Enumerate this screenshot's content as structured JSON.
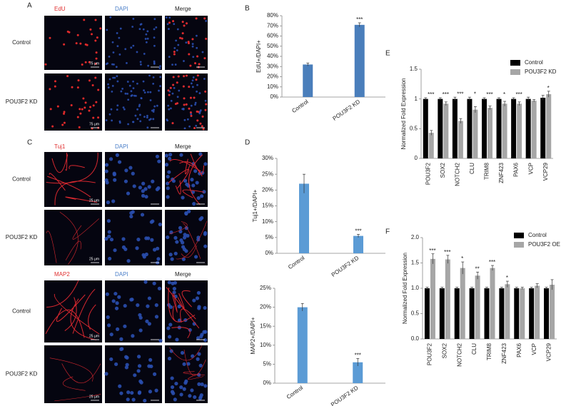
{
  "figure": {
    "image_panels": [
      {
        "letter": "A",
        "groups": [
          {
            "channels": [
              "EdU",
              "DAPI",
              "Merge"
            ],
            "rows": [
              "Control",
              "POU3F2 KD"
            ],
            "scale_bar": "75 μm"
          }
        ]
      },
      {
        "letter": "C",
        "groups": [
          {
            "channels": [
              "Tuj1",
              "DAPI",
              "Merge"
            ],
            "rows": [
              "Control",
              "POU3F2 KD"
            ],
            "scale_bar": "25 μm"
          },
          {
            "channels": [
              "MAP2",
              "DAPI",
              "Merge"
            ],
            "rows": [
              "Control",
              "POU3F2 KD"
            ],
            "scale_bar": "25 μm"
          }
        ]
      }
    ]
  },
  "chart_data": [
    {
      "type": "bar",
      "panel": "B",
      "y_label": "EdU+/DAPI+",
      "categories": [
        "Control",
        "POU3F2 KD"
      ],
      "values": [
        32,
        71
      ],
      "errors": [
        1.5,
        2
      ],
      "color": "#4a7ebb",
      "annotations": [
        null,
        "***"
      ],
      "ylim": [
        0,
        80
      ],
      "yticks": [
        {
          "value": 0,
          "label": "0%"
        },
        {
          "value": 10,
          "label": "10%"
        },
        {
          "value": 20,
          "label": "20%"
        },
        {
          "value": 30,
          "label": "30%"
        },
        {
          "value": 40,
          "label": "40%"
        },
        {
          "value": 50,
          "label": "50%"
        },
        {
          "value": 60,
          "label": "60%"
        },
        {
          "value": 70,
          "label": "70%"
        },
        {
          "value": 80,
          "label": "80%"
        }
      ]
    },
    {
      "type": "bar",
      "panel": "D",
      "y_label": "Tuj1+/DAPI+",
      "categories": [
        "Control",
        "POU3F2 KD"
      ],
      "values": [
        22,
        5.5
      ],
      "errors": [
        3,
        0.5
      ],
      "color": "#5b9bd5",
      "annotations": [
        null,
        "***"
      ],
      "ylim": [
        0,
        30
      ],
      "yticks": [
        {
          "value": 0,
          "label": "0%"
        },
        {
          "value": 5,
          "label": "5%"
        },
        {
          "value": 10,
          "label": "10%"
        },
        {
          "value": 15,
          "label": "15%"
        },
        {
          "value": 20,
          "label": "20%"
        },
        {
          "value": 25,
          "label": "25%"
        },
        {
          "value": 30,
          "label": "30%"
        }
      ]
    },
    {
      "type": "bar",
      "y_label": "MAP2+/DAPI+",
      "categories": [
        "Control",
        "POU3F2 KD"
      ],
      "values": [
        20,
        5.5
      ],
      "errors": [
        1,
        1
      ],
      "color": "#5b9bd5",
      "annotations": [
        null,
        "***"
      ],
      "ylim": [
        0,
        25
      ],
      "yticks": [
        {
          "value": 0,
          "label": "0%"
        },
        {
          "value": 5,
          "label": "5%"
        },
        {
          "value": 10,
          "label": "10%"
        },
        {
          "value": 15,
          "label": "15%"
        },
        {
          "value": 20,
          "label": "20%"
        },
        {
          "value": 25,
          "label": "25%"
        }
      ]
    },
    {
      "type": "bar",
      "panel": "E",
      "y_label": "Normalized Fold Expression",
      "categories": [
        "POU3F2",
        "SOX2",
        "NOTCH2",
        "CLU",
        "TRIM8",
        "ZNF423",
        "PAX6",
        "VCP",
        "VCP29"
      ],
      "series": [
        {
          "name": "Control",
          "color": "#000000",
          "values": [
            1,
            1,
            1,
            1,
            1,
            1,
            1,
            1,
            1.02
          ],
          "errors": [
            0.02,
            0.02,
            0.03,
            0.03,
            0.02,
            0.02,
            0.02,
            0.03,
            0.04
          ]
        },
        {
          "name": "POU3F2 KD",
          "color": "#a6a6a6",
          "values": [
            0.43,
            0.92,
            0.63,
            0.82,
            0.85,
            0.92,
            0.92,
            0.97,
            1.08
          ],
          "errors": [
            0.04,
            0.03,
            0.04,
            0.05,
            0.03,
            0.04,
            0.03,
            0.02,
            0.05
          ]
        }
      ],
      "annotations": [
        "***",
        "***",
        "***",
        "*",
        "***",
        "*",
        "***",
        null,
        "*"
      ],
      "ylim": [
        0,
        1.5
      ],
      "yticks": [
        0,
        0.5,
        1,
        1.5
      ],
      "legend": "upper right"
    },
    {
      "type": "bar",
      "panel": "F",
      "y_label": "Normalized Fold Expression",
      "categories": [
        "POU3F2",
        "SOX2",
        "NOTCH2",
        "CLU",
        "TRIM8",
        "ZNF423",
        "PAX6",
        "VCP",
        "VCP29"
      ],
      "series": [
        {
          "name": "Control",
          "color": "#000000",
          "values": [
            1,
            1,
            1,
            1,
            1,
            1,
            1,
            1,
            1
          ],
          "errors": [
            0.02,
            0.02,
            0.02,
            0.02,
            0.02,
            0.02,
            0.02,
            0.02,
            0.02
          ]
        },
        {
          "name": "POU3F2 OE",
          "color": "#a6a6a6",
          "values": [
            1.58,
            1.57,
            1.4,
            1.25,
            1.4,
            1.08,
            1,
            1.05,
            1.07
          ],
          "errors": [
            0.1,
            0.08,
            0.12,
            0.07,
            0.05,
            0.06,
            0.02,
            0.04,
            0.1
          ]
        }
      ],
      "annotations": [
        "***",
        "***",
        "*",
        "**",
        "***",
        "*",
        null,
        null,
        null
      ],
      "ylim": [
        0,
        2
      ],
      "yticks": [
        {
          "value": 0,
          "label": "0.0"
        },
        {
          "value": 0.5,
          "label": "0.5"
        },
        {
          "value": 1,
          "label": "1.0"
        },
        {
          "value": 1.5,
          "label": "1.5"
        },
        {
          "value": 2,
          "label": "2.0"
        }
      ],
      "legend": "upper right"
    }
  ]
}
